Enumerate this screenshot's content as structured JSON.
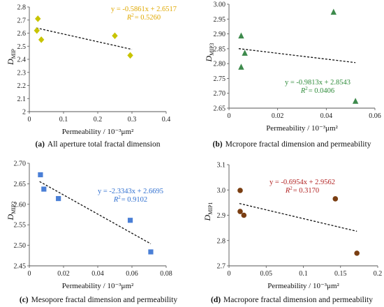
{
  "chart_data": [
    {
      "type": "scatter",
      "panel": "a",
      "caption_letter": "(a)",
      "caption_text": "All aperture total fractal dimension",
      "xlabel": "Permeability / 10⁻³μm²",
      "ylabel_main": "D",
      "ylabel_sub": "MIP",
      "xlim": [
        0,
        0.4
      ],
      "ylim": [
        2.0,
        2.8
      ],
      "xticks": [
        0,
        0.1,
        0.2,
        0.3,
        0.4
      ],
      "xtick_labels": [
        "0",
        "0.1",
        "0.2",
        "0.3",
        "0.4"
      ],
      "yticks": [
        2.0,
        2.1,
        2.2,
        2.3,
        2.4,
        2.5,
        2.6,
        2.7,
        2.8
      ],
      "ytick_labels": [
        "2",
        "2.1",
        "2.2",
        "2.3",
        "2.4",
        "2.5",
        "2.6",
        "2.7",
        "2.8"
      ],
      "marker": "diamond",
      "color": "#c8c400",
      "points": [
        {
          "x": 0.025,
          "y": 2.71
        },
        {
          "x": 0.022,
          "y": 2.62
        },
        {
          "x": 0.035,
          "y": 2.55
        },
        {
          "x": 0.25,
          "y": 2.58
        },
        {
          "x": 0.295,
          "y": 2.43
        }
      ],
      "trendline": {
        "slope": -0.5861,
        "intercept": 2.6517,
        "x_range": [
          0.02,
          0.3
        ]
      },
      "equation": "y = -0.5861x + 2.6517",
      "r2_label": "R",
      "r2_value": "= 0.5260",
      "equation_color": "#e0a800"
    },
    {
      "type": "scatter",
      "panel": "b",
      "caption_letter": "(b)",
      "caption_text": "Mcropore fractal dimension and permeability",
      "xlabel": "Permeability / 10⁻³μm²",
      "ylabel_main": "D",
      "ylabel_sub": "MIP3",
      "xlim": [
        0,
        0.06
      ],
      "ylim": [
        2.65,
        3.0
      ],
      "xticks": [
        0,
        0.02,
        0.04,
        0.06
      ],
      "xtick_labels": [
        "0",
        "0.02",
        "0.04",
        "0.06"
      ],
      "yticks": [
        2.65,
        2.7,
        2.75,
        2.8,
        2.85,
        2.9,
        2.95,
        3.0
      ],
      "ytick_labels": [
        "2.65",
        "2.70",
        "2.75",
        "2.80",
        "2.85",
        "2.90",
        "2.95",
        "3.00"
      ],
      "marker": "triangle",
      "color": "#3d8a4c",
      "points": [
        {
          "x": 0.005,
          "y": 2.893
        },
        {
          "x": 0.005,
          "y": 2.788
        },
        {
          "x": 0.0065,
          "y": 2.835
        },
        {
          "x": 0.043,
          "y": 2.973
        },
        {
          "x": 0.052,
          "y": 2.673
        }
      ],
      "trendline": {
        "slope": -0.9813,
        "intercept": 2.8543,
        "x_range": [
          0.004,
          0.052
        ]
      },
      "equation": "y = -0.9813x + 2.8543",
      "r2_label": "R",
      "r2_value": "= 0.0406",
      "equation_color": "#2e8b3a"
    },
    {
      "type": "scatter",
      "panel": "c",
      "caption_letter": "(c)",
      "caption_text": "Mesopore fractal dimension and permeability",
      "xlabel": "Permeability / 10⁻³μm²",
      "ylabel_main": "D",
      "ylabel_sub": "MIP2",
      "xlim": [
        0,
        0.08
      ],
      "ylim": [
        2.45,
        2.7
      ],
      "xticks": [
        0,
        0.02,
        0.04,
        0.06,
        0.08
      ],
      "xtick_labels": [
        "0",
        "0.02",
        "0.04",
        "0.06",
        "0.08"
      ],
      "yticks": [
        2.45,
        2.5,
        2.55,
        2.6,
        2.65,
        2.7
      ],
      "ytick_labels": [
        "2.45",
        "2.50",
        "2.55",
        "2.60",
        "2.65",
        "2.70"
      ],
      "marker": "square",
      "color": "#4a7fd6",
      "points": [
        {
          "x": 0.0065,
          "y": 2.672
        },
        {
          "x": 0.0085,
          "y": 2.637
        },
        {
          "x": 0.017,
          "y": 2.614
        },
        {
          "x": 0.059,
          "y": 2.561
        },
        {
          "x": 0.071,
          "y": 2.484
        }
      ],
      "trendline": {
        "slope": -2.3343,
        "intercept": 2.6695,
        "x_range": [
          0.006,
          0.071
        ]
      },
      "equation": "y = -2.3343x + 2.6695",
      "r2_label": "R",
      "r2_value": "= 0.9102",
      "equation_color": "#2f6fd0"
    },
    {
      "type": "scatter",
      "panel": "d",
      "caption_letter": "(d)",
      "caption_text": "Macropore fractal dimension and permeability",
      "xlabel": "Permeability / 10⁻³μm²",
      "ylabel_main": "D",
      "ylabel_sub": "MIP1",
      "xlim": [
        0,
        0.2
      ],
      "ylim": [
        2.7,
        3.1
      ],
      "xticks": [
        0,
        0.05,
        0.1,
        0.15,
        0.2
      ],
      "xtick_labels": [
        "0",
        "0.05",
        "0.1",
        "0.15",
        "0.2"
      ],
      "yticks": [
        2.7,
        2.8,
        2.9,
        3.0,
        3.1
      ],
      "ytick_labels": [
        "2.7",
        "2.8",
        "2.9",
        "3.0",
        "3.1"
      ],
      "marker": "circle",
      "color": "#7a3e12",
      "points": [
        {
          "x": 0.015,
          "y": 2.998
        },
        {
          "x": 0.015,
          "y": 2.915
        },
        {
          "x": 0.02,
          "y": 2.9
        },
        {
          "x": 0.143,
          "y": 2.965
        },
        {
          "x": 0.172,
          "y": 2.75
        }
      ],
      "trendline": {
        "slope": -0.6954,
        "intercept": 2.9562,
        "x_range": [
          0.014,
          0.172
        ]
      },
      "equation": "y = -0.6954x + 2.9562",
      "r2_label": "R",
      "r2_value": "= 0.3170",
      "equation_color": "#b22222"
    }
  ]
}
